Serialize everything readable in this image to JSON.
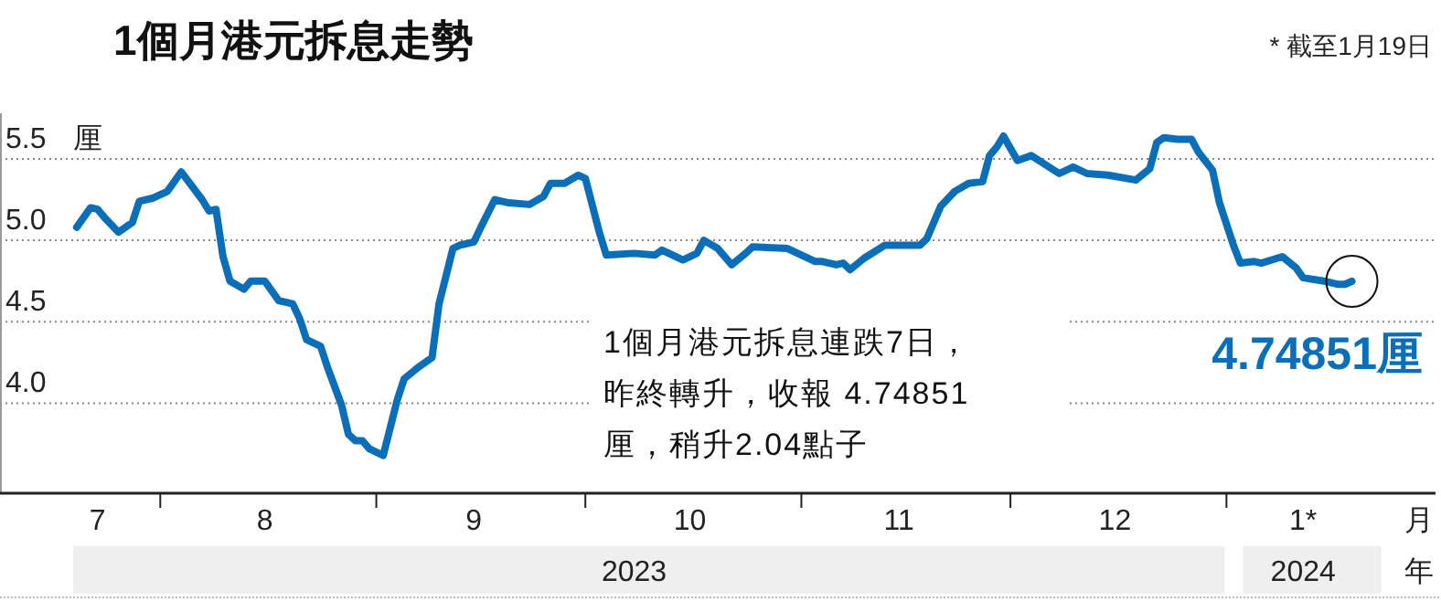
{
  "chart_data": {
    "type": "line",
    "title": "1個月港元拆息走勢",
    "subtitle": "* 截至1月19日",
    "ylabel": "厘",
    "xlabel": "月",
    "x2label": "年",
    "x": [
      "2023-07-20",
      "2023-07-22",
      "2023-07-23",
      "2023-07-24",
      "2023-07-26",
      "2023-07-28",
      "2023-07-29",
      "2023-07-31",
      "2023-08-02",
      "2023-08-04",
      "2023-08-07",
      "2023-08-08",
      "2023-08-09",
      "2023-08-10",
      "2023-08-11",
      "2023-08-13",
      "2023-08-14",
      "2023-08-16",
      "2023-08-18",
      "2023-08-20",
      "2023-08-21",
      "2023-08-22",
      "2023-08-24",
      "2023-08-25",
      "2023-08-27",
      "2023-08-28",
      "2023-08-29",
      "2023-08-30",
      "2023-08-31",
      "2023-09-02",
      "2023-09-04",
      "2023-09-05",
      "2023-09-07",
      "2023-09-09",
      "2023-09-10",
      "2023-09-12",
      "2023-09-13",
      "2023-09-15",
      "2023-09-16",
      "2023-09-18",
      "2023-09-20",
      "2023-09-23",
      "2023-09-25",
      "2023-09-26",
      "2023-09-28",
      "2023-09-30",
      "2023-10-01",
      "2023-10-03",
      "2023-10-04",
      "2023-10-08",
      "2023-10-11",
      "2023-10-12",
      "2023-10-15",
      "2023-10-17",
      "2023-10-18",
      "2023-10-20",
      "2023-10-22",
      "2023-10-24",
      "2023-10-25",
      "2023-10-30",
      "2023-11-03",
      "2023-11-04",
      "2023-11-06",
      "2023-11-07",
      "2023-11-08",
      "2023-11-10",
      "2023-11-13",
      "2023-11-18",
      "2023-11-19",
      "2023-11-21",
      "2023-11-23",
      "2023-11-25",
      "2023-11-27",
      "2023-11-28",
      "2023-11-29",
      "2023-11-30",
      "2023-12-02",
      "2023-12-04",
      "2023-12-08",
      "2023-12-10",
      "2023-12-12",
      "2023-12-15",
      "2023-12-19",
      "2023-12-21",
      "2023-12-22",
      "2023-12-23",
      "2023-12-25",
      "2023-12-27",
      "2023-12-28",
      "2023-12-30",
      "2023-12-31",
      "2024-01-02",
      "2024-01-03",
      "2024-01-05",
      "2024-01-06",
      "2024-01-09",
      "2024-01-11",
      "2024-01-12",
      "2024-01-15",
      "2024-01-17",
      "2024-01-18",
      "2024-01-19"
    ],
    "series": [
      {
        "color": "#0a6fb8",
        "values": [
          5.08,
          5.2,
          5.19,
          5.14,
          5.05,
          5.11,
          5.24,
          5.26,
          5.3,
          5.42,
          5.25,
          5.18,
          5.19,
          4.9,
          4.75,
          4.7,
          4.75,
          4.75,
          4.63,
          4.61,
          4.52,
          4.39,
          4.35,
          4.22,
          3.99,
          3.81,
          3.77,
          3.77,
          3.72,
          3.68,
          4.02,
          4.15,
          4.22,
          4.28,
          4.61,
          4.95,
          4.97,
          4.99,
          5.08,
          5.25,
          5.23,
          5.22,
          5.27,
          5.35,
          5.35,
          5.4,
          5.38,
          5.05,
          4.91,
          4.92,
          4.91,
          4.94,
          4.88,
          4.92,
          5.0,
          4.95,
          4.85,
          4.92,
          4.96,
          4.95,
          4.87,
          4.87,
          4.85,
          4.86,
          4.82,
          4.89,
          4.97,
          4.97,
          5.01,
          5.21,
          5.3,
          5.35,
          5.36,
          5.52,
          5.57,
          5.64,
          5.49,
          5.52,
          5.41,
          5.45,
          5.41,
          5.4,
          5.37,
          5.44,
          5.6,
          5.63,
          5.62,
          5.62,
          5.54,
          5.43,
          5.23,
          4.97,
          4.86,
          4.87,
          4.86,
          4.9,
          4.83,
          4.77,
          4.75,
          4.73,
          4.73,
          4.74851
        ]
      }
    ],
    "xlim": [
      "2023-07-09",
      "2024-01-31"
    ],
    "xticks": [
      {
        "value": "2023-07-23",
        "label": "7"
      },
      {
        "value": "2023-08-01",
        "label": null
      },
      {
        "value": "2023-08-16",
        "label": "8"
      },
      {
        "value": "2023-09-01",
        "label": null
      },
      {
        "value": "2023-09-15",
        "label": "9"
      },
      {
        "value": "2023-10-01",
        "label": null
      },
      {
        "value": "2023-10-16",
        "label": "10"
      },
      {
        "value": "2023-11-01",
        "label": null
      },
      {
        "value": "2023-11-15",
        "label": "11"
      },
      {
        "value": "2023-12-01",
        "label": null
      },
      {
        "value": "2023-12-16",
        "label": "12"
      },
      {
        "value": "2024-01-01",
        "label": null
      },
      {
        "value": "2024-01-12",
        "label": "1*"
      }
    ],
    "x2lim": [
      "2023-07-09",
      "2024-01-31"
    ],
    "x2ticks": [
      {
        "value": "2023-10-08",
        "label": "2023"
      },
      {
        "value": "2024-01-12",
        "label": "2024"
      }
    ],
    "ylim": [
      3.47,
      5.78
    ],
    "yticks": [
      {
        "value": 4,
        "label": "4.0"
      },
      4.5,
      {
        "value": 5,
        "label": "5.0"
      },
      5.5
    ],
    "grid": "y",
    "marker": "none",
    "line_style": "solid",
    "annotations": [
      "1個月港元拆息連跌7日，",
      "昨終轉升，收報 4.74851",
      "厘，稍升2.04點子",
      {
        "text": "4.74851厘",
        "x": "2024-01-19",
        "y": 4.74851
      }
    ]
  }
}
